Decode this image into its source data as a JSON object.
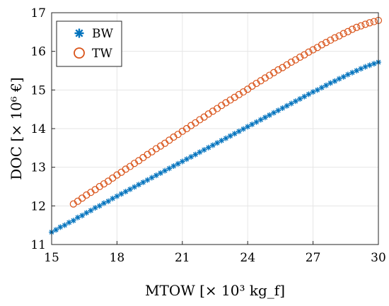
{
  "chart_data": {
    "type": "scatter",
    "title": "",
    "xlabel": "MTOW [× 10³ kg_f]",
    "ylabel": "DOC [× 10⁶ €]",
    "xlim": [
      15,
      30
    ],
    "ylim": [
      11,
      17
    ],
    "xticks": [
      15,
      18,
      21,
      24,
      27,
      30
    ],
    "yticks": [
      11,
      12,
      13,
      14,
      15,
      16,
      17
    ],
    "grid": true,
    "legend_position": "top-left",
    "series": [
      {
        "name": "BW",
        "marker": "asterisk",
        "color": "#0072BD",
        "x": [
          15.0,
          15.2,
          15.4,
          15.6,
          15.8,
          16.0,
          16.2,
          16.4,
          16.6,
          16.8,
          17.0,
          17.2,
          17.4,
          17.6,
          17.8,
          18.0,
          18.2,
          18.4,
          18.6,
          18.8,
          19.0,
          19.2,
          19.4,
          19.6,
          19.8,
          20.0,
          20.2,
          20.4,
          20.6,
          20.8,
          21.0,
          21.2,
          21.4,
          21.6,
          21.8,
          22.0,
          22.2,
          22.4,
          22.6,
          22.8,
          23.0,
          23.2,
          23.4,
          23.6,
          23.8,
          24.0,
          24.2,
          24.4,
          24.6,
          24.8,
          25.0,
          25.2,
          25.4,
          25.6,
          25.8,
          26.0,
          26.2,
          26.4,
          26.6,
          26.8,
          27.0,
          27.2,
          27.4,
          27.6,
          27.8,
          28.0,
          28.2,
          28.4,
          28.6,
          28.8,
          29.0,
          29.2,
          29.4,
          29.6,
          29.8,
          30.0
        ],
        "y": [
          11.32,
          11.38,
          11.45,
          11.5,
          11.57,
          11.62,
          11.7,
          11.75,
          11.82,
          11.88,
          11.95,
          12.0,
          12.07,
          12.12,
          12.19,
          12.25,
          12.31,
          12.37,
          12.43,
          12.49,
          12.55,
          12.61,
          12.67,
          12.73,
          12.79,
          12.85,
          12.91,
          12.97,
          13.03,
          13.09,
          13.15,
          13.21,
          13.27,
          13.33,
          13.39,
          13.45,
          13.51,
          13.57,
          13.63,
          13.69,
          13.75,
          13.81,
          13.87,
          13.93,
          13.99,
          14.05,
          14.11,
          14.17,
          14.23,
          14.29,
          14.35,
          14.41,
          14.47,
          14.53,
          14.59,
          14.65,
          14.71,
          14.77,
          14.83,
          14.89,
          14.95,
          15.0,
          15.06,
          15.12,
          15.18,
          15.23,
          15.29,
          15.34,
          15.4,
          15.45,
          15.5,
          15.55,
          15.6,
          15.64,
          15.68,
          15.72
        ]
      },
      {
        "name": "TW",
        "marker": "circle",
        "color": "#D95319",
        "x": [
          16.0,
          16.2,
          16.4,
          16.6,
          16.8,
          17.0,
          17.2,
          17.4,
          17.6,
          17.8,
          18.0,
          18.2,
          18.4,
          18.6,
          18.8,
          19.0,
          19.2,
          19.4,
          19.6,
          19.8,
          20.0,
          20.2,
          20.4,
          20.6,
          20.8,
          21.0,
          21.2,
          21.4,
          21.6,
          21.8,
          22.0,
          22.2,
          22.4,
          22.6,
          22.8,
          23.0,
          23.2,
          23.4,
          23.6,
          23.8,
          24.0,
          24.2,
          24.4,
          24.6,
          24.8,
          25.0,
          25.2,
          25.4,
          25.6,
          25.8,
          26.0,
          26.2,
          26.4,
          26.6,
          26.8,
          27.0,
          27.2,
          27.4,
          27.6,
          27.8,
          28.0,
          28.2,
          28.4,
          28.6,
          28.8,
          29.0,
          29.2,
          29.4,
          29.6,
          29.8,
          30.0
        ],
        "y": [
          12.05,
          12.12,
          12.2,
          12.28,
          12.35,
          12.42,
          12.5,
          12.57,
          12.64,
          12.72,
          12.8,
          12.87,
          12.95,
          13.02,
          13.1,
          13.17,
          13.25,
          13.33,
          13.4,
          13.48,
          13.55,
          13.62,
          13.7,
          13.78,
          13.85,
          13.93,
          14.0,
          14.08,
          14.15,
          14.23,
          14.3,
          14.38,
          14.45,
          14.52,
          14.6,
          14.67,
          14.74,
          14.81,
          14.88,
          14.95,
          15.02,
          15.1,
          15.17,
          15.24,
          15.31,
          15.38,
          15.45,
          15.52,
          15.58,
          15.65,
          15.72,
          15.78,
          15.85,
          15.91,
          15.98,
          16.04,
          16.1,
          16.17,
          16.23,
          16.29,
          16.35,
          16.4,
          16.46,
          16.51,
          16.57,
          16.62,
          16.66,
          16.7,
          16.74,
          16.77,
          16.8
        ]
      }
    ]
  }
}
